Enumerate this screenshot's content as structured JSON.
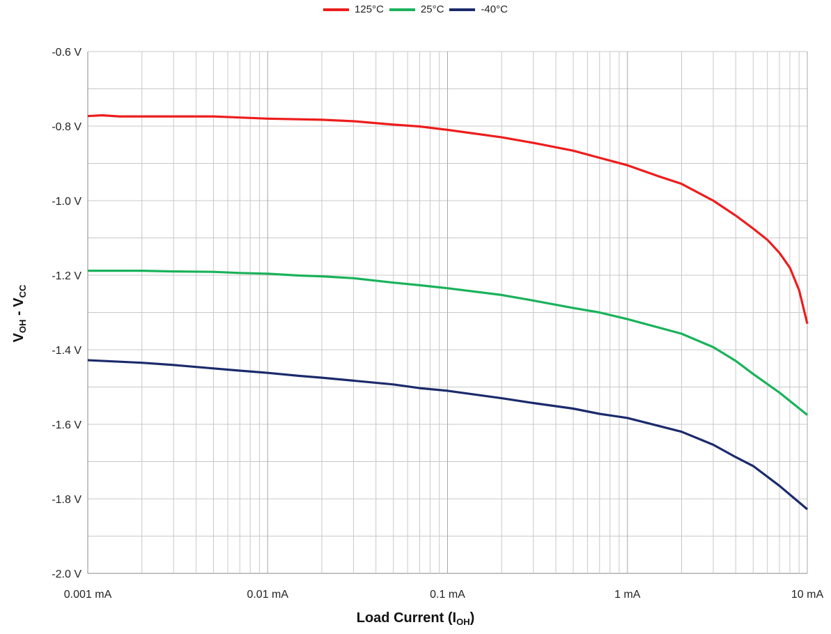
{
  "legend": [
    {
      "name": "125°C",
      "color": "#ee1c1c"
    },
    {
      "name": "25°C",
      "color": "#19b25a"
    },
    {
      "name": "-40°C",
      "color": "#1b2a6b"
    }
  ],
  "axes": {
    "ylabel_main": "V",
    "ylabel_sub1": "OH",
    "ylabel_mid": " - V",
    "ylabel_sub2": "CC",
    "xlabel_main": "Load Current (I",
    "xlabel_sub": "OH",
    "xlabel_end": ")"
  },
  "chart_data": {
    "type": "line",
    "x_scale": "log",
    "xlim": [
      0.001,
      10
    ],
    "ylim": [
      -2.0,
      -0.6
    ],
    "grid": true,
    "legend_position": "top-center",
    "xticks": [
      {
        "value": 0.001,
        "label": "0.001 mA"
      },
      {
        "value": 0.01,
        "label": "0.01 mA"
      },
      {
        "value": 0.1,
        "label": "0.1 mA"
      },
      {
        "value": 1,
        "label": "1 mA"
      },
      {
        "value": 10,
        "label": "10 mA"
      }
    ],
    "yticks": [
      {
        "value": -0.6,
        "label": "-0.6 V"
      },
      {
        "value": -0.8,
        "label": "-0.8 V"
      },
      {
        "value": -1.0,
        "label": "-1.0 V"
      },
      {
        "value": -1.2,
        "label": "-1.2 V"
      },
      {
        "value": -1.4,
        "label": "-1.4 V"
      },
      {
        "value": -1.6,
        "label": "-1.6 V"
      },
      {
        "value": -1.8,
        "label": "-1.8 V"
      },
      {
        "value": -2.0,
        "label": "-2.0 V"
      }
    ],
    "series": [
      {
        "name": "125°C",
        "color": "#ee1c1c",
        "points": [
          [
            0.001,
            -0.773
          ],
          [
            0.0012,
            -0.771
          ],
          [
            0.0015,
            -0.774
          ],
          [
            0.002,
            -0.774
          ],
          [
            0.003,
            -0.774
          ],
          [
            0.005,
            -0.774
          ],
          [
            0.007,
            -0.777
          ],
          [
            0.01,
            -0.78
          ],
          [
            0.02,
            -0.783
          ],
          [
            0.03,
            -0.787
          ],
          [
            0.05,
            -0.796
          ],
          [
            0.07,
            -0.801
          ],
          [
            0.1,
            -0.81
          ],
          [
            0.2,
            -0.83
          ],
          [
            0.3,
            -0.845
          ],
          [
            0.5,
            -0.866
          ],
          [
            0.7,
            -0.885
          ],
          [
            1,
            -0.905
          ],
          [
            1.5,
            -0.935
          ],
          [
            2,
            -0.955
          ],
          [
            3,
            -1.0
          ],
          [
            4,
            -1.04
          ],
          [
            5,
            -1.075
          ],
          [
            6,
            -1.105
          ],
          [
            7,
            -1.14
          ],
          [
            8,
            -1.18
          ],
          [
            9,
            -1.24
          ],
          [
            10,
            -1.33
          ]
        ]
      },
      {
        "name": "25°C",
        "color": "#19b25a",
        "points": [
          [
            0.001,
            -1.188
          ],
          [
            0.002,
            -1.188
          ],
          [
            0.003,
            -1.19
          ],
          [
            0.005,
            -1.191
          ],
          [
            0.007,
            -1.194
          ],
          [
            0.01,
            -1.196
          ],
          [
            0.015,
            -1.201
          ],
          [
            0.02,
            -1.203
          ],
          [
            0.03,
            -1.208
          ],
          [
            0.05,
            -1.22
          ],
          [
            0.07,
            -1.227
          ],
          [
            0.1,
            -1.235
          ],
          [
            0.2,
            -1.253
          ],
          [
            0.3,
            -1.268
          ],
          [
            0.5,
            -1.288
          ],
          [
            0.7,
            -1.3
          ],
          [
            1,
            -1.318
          ],
          [
            2,
            -1.357
          ],
          [
            3,
            -1.393
          ],
          [
            4,
            -1.43
          ],
          [
            5,
            -1.465
          ],
          [
            7,
            -1.515
          ],
          [
            10,
            -1.575
          ]
        ]
      },
      {
        "name": "-40°C",
        "color": "#1b2a6b",
        "points": [
          [
            0.001,
            -1.428
          ],
          [
            0.002,
            -1.435
          ],
          [
            0.003,
            -1.441
          ],
          [
            0.005,
            -1.45
          ],
          [
            0.007,
            -1.456
          ],
          [
            0.01,
            -1.462
          ],
          [
            0.015,
            -1.47
          ],
          [
            0.02,
            -1.475
          ],
          [
            0.03,
            -1.483
          ],
          [
            0.05,
            -1.493
          ],
          [
            0.07,
            -1.503
          ],
          [
            0.1,
            -1.51
          ],
          [
            0.2,
            -1.53
          ],
          [
            0.3,
            -1.543
          ],
          [
            0.5,
            -1.558
          ],
          [
            0.7,
            -1.572
          ],
          [
            1,
            -1.583
          ],
          [
            2,
            -1.62
          ],
          [
            3,
            -1.655
          ],
          [
            4,
            -1.688
          ],
          [
            5,
            -1.712
          ],
          [
            7,
            -1.765
          ],
          [
            10,
            -1.828
          ]
        ]
      }
    ]
  }
}
